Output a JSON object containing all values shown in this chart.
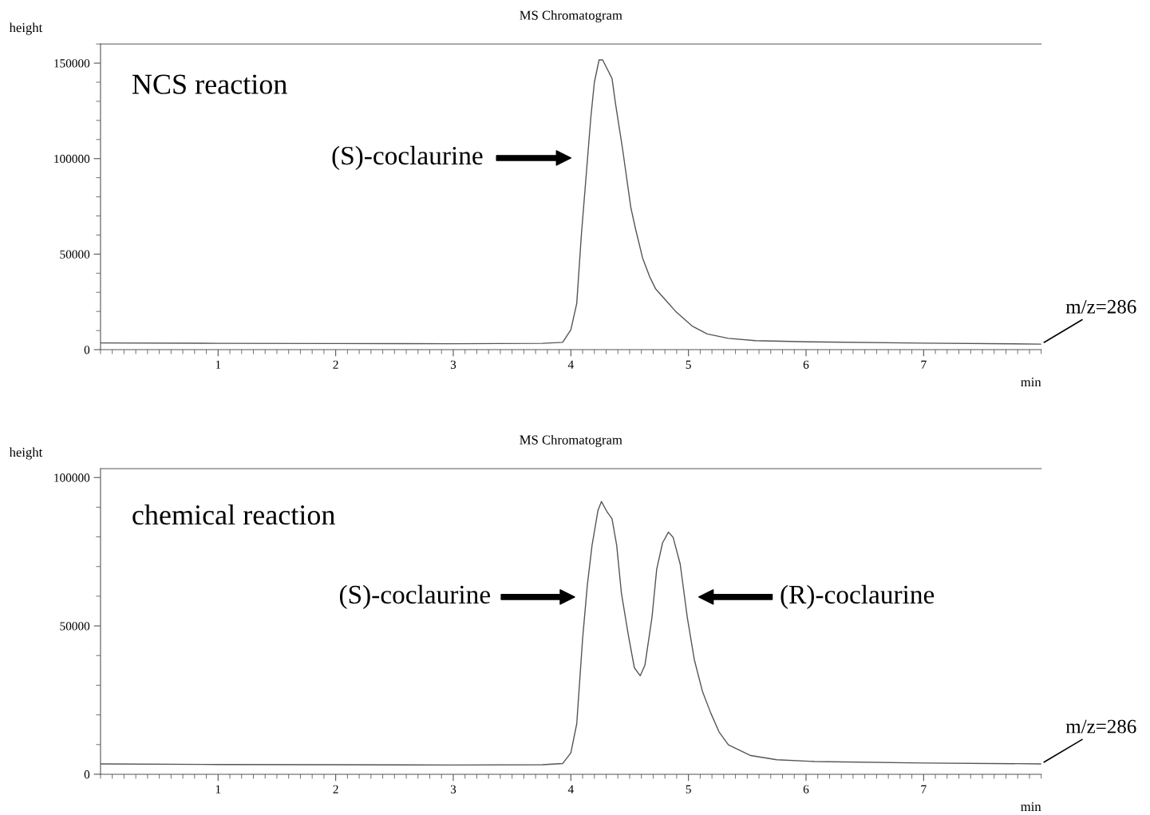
{
  "chart_data": [
    {
      "type": "line",
      "title": "MS Chromatogram",
      "xlabel": "min",
      "ylabel": "height",
      "xlim": [
        0,
        8
      ],
      "xticks": [
        1,
        2,
        3,
        4,
        5,
        6,
        7
      ],
      "ylim": [
        0,
        160000
      ],
      "yticks": [
        0,
        50000,
        100000,
        150000
      ],
      "grid": false,
      "legend": false,
      "marker": "none",
      "line_style": "solid",
      "series": [
        {
          "color": "#555555",
          "x": [
            0,
            1,
            2,
            3,
            3.76,
            3.93,
            4.0,
            4.05,
            4.09,
            4.13,
            4.17,
            4.2,
            4.24,
            4.27,
            4.35,
            4.38,
            4.44,
            4.51,
            4.55,
            4.61,
            4.67,
            4.72,
            4.8,
            4.89,
            5.03,
            5.16,
            5.34,
            5.57,
            6.02,
            7,
            8
          ],
          "values": [
            3500,
            3300,
            3200,
            3100,
            3300,
            3800,
            10400,
            24200,
            60600,
            91000,
            121700,
            140000,
            151700,
            151700,
            142000,
            128700,
            105000,
            74400,
            63200,
            48000,
            38200,
            31900,
            26300,
            20100,
            12400,
            8200,
            5900,
            4700,
            4100,
            3400,
            2900
          ]
        }
      ],
      "annotations": [
        "NCS reaction",
        "(S)-coclaurine",
        {
          "text": "m/z=286",
          "x": 8,
          "y": 2900
        }
      ]
    },
    {
      "type": "line",
      "title": "MS Chromatogram",
      "xlabel": "min",
      "ylabel": "height",
      "xlim": [
        0,
        8
      ],
      "xticks": [
        1,
        2,
        3,
        4,
        5,
        6,
        7
      ],
      "ylim": [
        0,
        103000
      ],
      "yticks": [
        0,
        50000,
        100000
      ],
      "grid": false,
      "legend": false,
      "marker": "none",
      "line_style": "solid",
      "series": [
        {
          "color": "#555555",
          "x": [
            0,
            1,
            2,
            3,
            3.76,
            3.93,
            4.0,
            4.05,
            4.1,
            4.14,
            4.18,
            4.23,
            4.26,
            4.31,
            4.35,
            4.39,
            4.43,
            4.49,
            4.54,
            4.59,
            4.63,
            4.69,
            4.73,
            4.78,
            4.83,
            4.87,
            4.93,
            4.99,
            5.05,
            5.12,
            5.19,
            5.26,
            5.34,
            5.53,
            5.75,
            6.07,
            7,
            8
          ],
          "values": [
            3500,
            3300,
            3200,
            3100,
            3200,
            3600,
            7200,
            17000,
            45700,
            63700,
            77100,
            88800,
            91900,
            88300,
            86100,
            77100,
            61000,
            46600,
            35900,
            33200,
            36800,
            52900,
            69100,
            78000,
            81600,
            79800,
            70800,
            52900,
            38600,
            27800,
            20600,
            14300,
            9900,
            6300,
            4900,
            4300,
            3800,
            3500
          ]
        }
      ],
      "annotations": [
        "chemical reaction",
        "(S)-coclaurine",
        "(R)-coclaurine",
        {
          "text": "m/z=286",
          "x": 8,
          "y": 3500
        }
      ]
    }
  ]
}
